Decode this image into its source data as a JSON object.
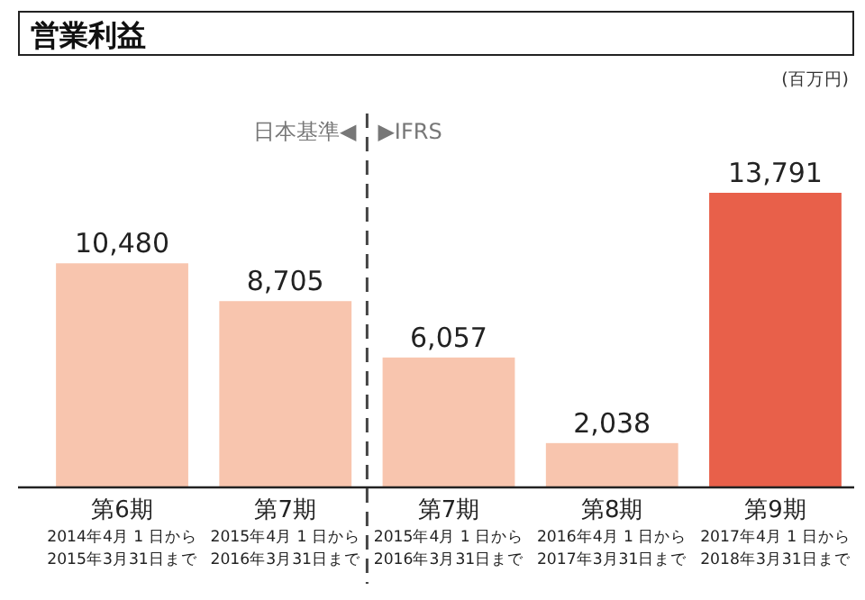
{
  "chart_data": {
    "type": "bar",
    "title": "営業利益",
    "categories": [
      "第6期\n2014年4月 1 日から\n2015年3月31日まで",
      "第7期\n2015年4月 1 日から\n2016年3月31日まで",
      "第7期\n2015年4月 1 日から\n2016年3月31日まで",
      "第8期\n2016年4月 1 日から\n2017年3月31日まで",
      "第9期\n2017年4月 1 日から\n2018年3月31日まで"
    ],
    "values": [
      10480,
      8705,
      6057,
      2038,
      13791
    ],
    "colors": [
      "#f8c5ae",
      "#f8c5ae",
      "#f8c5ae",
      "#f8c5ae",
      "#e8604a"
    ],
    "value_labels": [
      "10,480",
      "8,705",
      "6,057",
      "2,038",
      "13,791"
    ],
    "annotations": [
      "(百万円)",
      "日本基準◀",
      "▶IFRS"
    ]
  }
}
